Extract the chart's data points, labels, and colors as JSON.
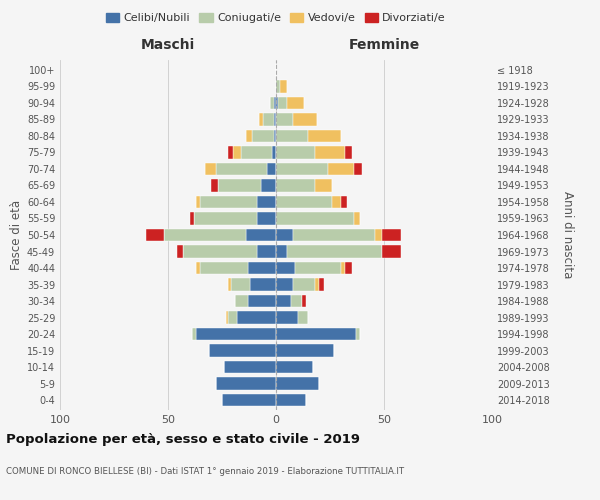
{
  "age_groups": [
    "0-4",
    "5-9",
    "10-14",
    "15-19",
    "20-24",
    "25-29",
    "30-34",
    "35-39",
    "40-44",
    "45-49",
    "50-54",
    "55-59",
    "60-64",
    "65-69",
    "70-74",
    "75-79",
    "80-84",
    "85-89",
    "90-94",
    "95-99",
    "100+"
  ],
  "birth_years": [
    "2014-2018",
    "2009-2013",
    "2004-2008",
    "1999-2003",
    "1994-1998",
    "1989-1993",
    "1984-1988",
    "1979-1983",
    "1974-1978",
    "1969-1973",
    "1964-1968",
    "1959-1963",
    "1954-1958",
    "1949-1953",
    "1944-1948",
    "1939-1943",
    "1934-1938",
    "1929-1933",
    "1924-1928",
    "1919-1923",
    "≤ 1918"
  ],
  "colors": {
    "celibi": "#4472a8",
    "coniugati": "#b8ccaa",
    "vedovi": "#f0c060",
    "divorziati": "#cc2222"
  },
  "maschi": {
    "celibi": [
      25,
      28,
      24,
      31,
      37,
      18,
      13,
      12,
      13,
      9,
      14,
      9,
      9,
      7,
      4,
      2,
      1,
      1,
      1,
      0,
      0
    ],
    "coniugati": [
      0,
      0,
      0,
      0,
      2,
      4,
      6,
      9,
      22,
      34,
      38,
      29,
      26,
      20,
      24,
      14,
      10,
      5,
      2,
      0,
      0
    ],
    "vedovi": [
      0,
      0,
      0,
      0,
      0,
      1,
      0,
      1,
      2,
      0,
      0,
      0,
      2,
      0,
      5,
      4,
      3,
      2,
      0,
      0,
      0
    ],
    "divorziati": [
      0,
      0,
      0,
      0,
      0,
      0,
      0,
      0,
      0,
      3,
      8,
      2,
      0,
      3,
      0,
      2,
      0,
      0,
      0,
      0,
      0
    ]
  },
  "femmine": {
    "celibi": [
      14,
      20,
      17,
      27,
      37,
      10,
      7,
      8,
      9,
      5,
      8,
      0,
      0,
      0,
      0,
      0,
      0,
      0,
      1,
      0,
      0
    ],
    "coniugati": [
      0,
      0,
      0,
      0,
      2,
      5,
      5,
      10,
      21,
      44,
      38,
      36,
      26,
      18,
      24,
      18,
      15,
      8,
      4,
      2,
      0
    ],
    "vedovi": [
      0,
      0,
      0,
      0,
      0,
      0,
      0,
      2,
      2,
      0,
      3,
      3,
      4,
      8,
      12,
      14,
      15,
      11,
      8,
      3,
      0
    ],
    "divorziati": [
      0,
      0,
      0,
      0,
      0,
      0,
      2,
      2,
      3,
      9,
      9,
      0,
      3,
      0,
      4,
      3,
      0,
      0,
      0,
      0,
      0
    ]
  },
  "title": "Popolazione per età, sesso e stato civile - 2019",
  "subtitle": "COMUNE DI RONCO BIELLESE (BI) - Dati ISTAT 1° gennaio 2019 - Elaborazione TUTTITALIA.IT",
  "xlabel_left": "Maschi",
  "xlabel_right": "Femmine",
  "ylabel_left": "Fasce di età",
  "ylabel_right": "Anni di nascita",
  "xlim": 100,
  "legend_labels": [
    "Celibi/Nubili",
    "Coniugati/e",
    "Vedovi/e",
    "Divorziati/e"
  ],
  "background_color": "#f5f5f5"
}
